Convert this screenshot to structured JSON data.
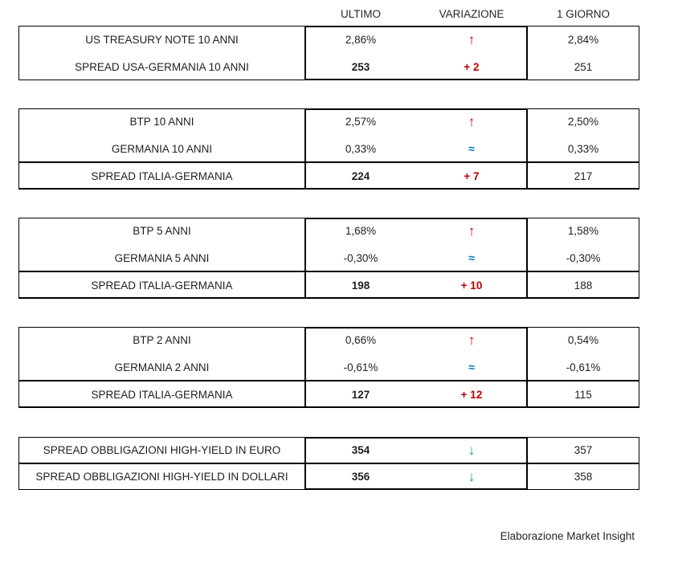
{
  "header": {
    "col_ultimo": "ULTIMO",
    "col_variazione": "VARIAZIONE",
    "col_giorno": "1 GIORNO"
  },
  "icons": {
    "up": "↑",
    "flat": "≈",
    "down": "↓"
  },
  "colors": {
    "up_red": "#C00000",
    "flat_blue": "#0070C0",
    "down_green": "#00A550",
    "text": "#1f1f1f",
    "border": "#000000"
  },
  "blocks": [
    {
      "rows": [
        {
          "label": "US TREASURY NOTE 10 ANNI",
          "ultimo": "2,86%",
          "symbol": "up",
          "giorno": "2,84%"
        },
        {
          "label": "SPREAD USA-GERMANIA 10 ANNI",
          "ultimo": "253",
          "variazione": "+ 2",
          "giorno": "251"
        }
      ]
    },
    {
      "rows": [
        {
          "label": "BTP 10 ANNI",
          "ultimo": "2,57%",
          "symbol": "up",
          "giorno": "2,50%"
        },
        {
          "label": "GERMANIA 10 ANNI",
          "ultimo": "0,33%",
          "symbol": "flat",
          "giorno": "0,33%"
        },
        {
          "label": "SPREAD ITALIA-GERMANIA",
          "ultimo": "224",
          "variazione": "+ 7",
          "giorno": "217"
        }
      ]
    },
    {
      "rows": [
        {
          "label": "BTP 5 ANNI",
          "ultimo": "1,68%",
          "symbol": "up",
          "giorno": "1,58%"
        },
        {
          "label": "GERMANIA 5 ANNI",
          "ultimo": "-0,30%",
          "symbol": "flat",
          "giorno": "-0,30%"
        },
        {
          "label": "SPREAD ITALIA-GERMANIA",
          "ultimo": "198",
          "variazione": "+ 10",
          "giorno": "188"
        }
      ]
    },
    {
      "rows": [
        {
          "label": "BTP 2 ANNI",
          "ultimo": "0,66%",
          "symbol": "up",
          "giorno": "0,54%"
        },
        {
          "label": "GERMANIA 2 ANNI",
          "ultimo": "-0,61%",
          "symbol": "flat",
          "giorno": "-0,61%"
        },
        {
          "label": "SPREAD ITALIA-GERMANIA",
          "ultimo": "127",
          "variazione": "+ 12",
          "giorno": "115"
        }
      ]
    },
    {
      "rows": [
        {
          "label": "SPREAD OBBLIGAZIONI HIGH-YIELD IN EURO",
          "ultimo": "354",
          "symbol": "down",
          "giorno": "357"
        },
        {
          "label": "SPREAD OBBLIGAZIONI HIGH-YIELD IN DOLLARI",
          "ultimo": "356",
          "symbol": "down",
          "giorno": "358"
        }
      ]
    }
  ],
  "footer": {
    "credit": "Elaborazione Market Insight"
  }
}
